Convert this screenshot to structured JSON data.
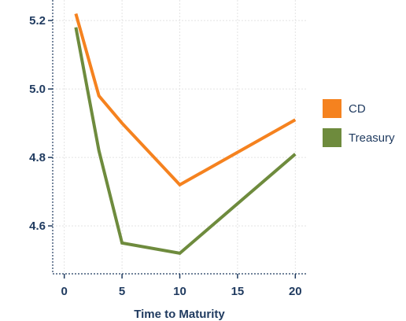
{
  "chart_data": {
    "type": "line",
    "title": "",
    "xlabel": "Time to Maturity",
    "ylabel": "",
    "xlim": [
      -1,
      21
    ],
    "ylim": [
      4.46,
      5.26
    ],
    "x_ticks": [
      0,
      5,
      10,
      15,
      20
    ],
    "x_tick_labels": [
      "0",
      "5",
      "10",
      "15",
      "20"
    ],
    "y_ticks": [
      4.6,
      4.8,
      5.0,
      5.2
    ],
    "y_tick_labels": [
      "4.6",
      "4.8",
      "5.0",
      "5.2"
    ],
    "grid": true,
    "legend_position": "right",
    "series": [
      {
        "name": "CD",
        "color": "#f5821f",
        "x": [
          1,
          3,
          5,
          10,
          20
        ],
        "y": [
          5.22,
          4.98,
          4.9,
          4.72,
          4.91
        ]
      },
      {
        "name": "Treasury",
        "color": "#6e8b3d",
        "x": [
          1,
          3,
          5,
          10,
          20
        ],
        "y": [
          5.18,
          4.82,
          4.55,
          4.52,
          4.81
        ]
      }
    ]
  }
}
